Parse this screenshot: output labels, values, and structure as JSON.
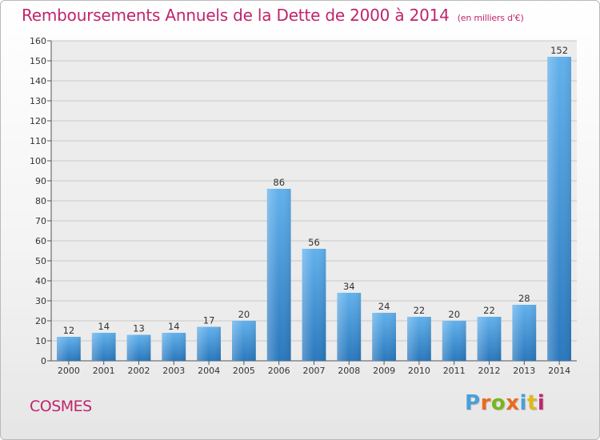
{
  "header": {
    "title": "Remboursements Annuels de la Dette de 2000 à 2014",
    "unit": "(en milliers d'€)"
  },
  "footer": {
    "commune": "COSMES",
    "logo_letters": [
      "P",
      "r",
      "o",
      "x",
      "i",
      "t",
      "i"
    ],
    "logo_colors": [
      "#4aa0d6",
      "#e96b1f",
      "#7ab51d",
      "#e96b1f",
      "#4aa0d6",
      "#e0b81a",
      "#c0246d"
    ]
  },
  "chart_data": {
    "type": "bar",
    "title": "Remboursements Annuels de la Dette de 2000 à 2014",
    "subtitle": "(en milliers d'€)",
    "categories": [
      "2000",
      "2001",
      "2002",
      "2003",
      "2004",
      "2005",
      "2006",
      "2007",
      "2008",
      "2009",
      "2010",
      "2011",
      "2012",
      "2013",
      "2014"
    ],
    "values": [
      12,
      14,
      13,
      14,
      17,
      20,
      86,
      56,
      34,
      24,
      22,
      20,
      22,
      28,
      152
    ],
    "ylim": [
      0,
      160
    ],
    "yticks": [
      0,
      10,
      20,
      30,
      40,
      50,
      60,
      70,
      80,
      90,
      100,
      110,
      120,
      130,
      140,
      150,
      160
    ],
    "grid": true,
    "bar_color": "#4a9fe0",
    "xlabel": "",
    "ylabel": ""
  }
}
